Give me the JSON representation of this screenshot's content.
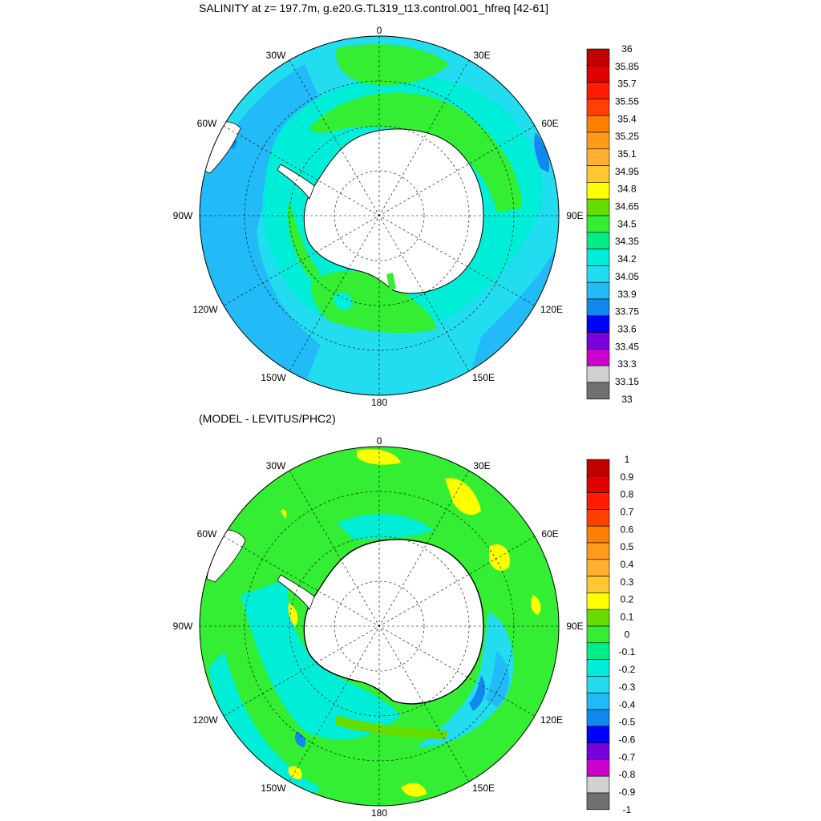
{
  "panels": [
    {
      "title": "SALINITY at z= 197.7m, g.e20.G.TL319_t13.control.001_hfreq [42-61]",
      "colorbar": {
        "labels": [
          "36",
          "35.85",
          "35.7",
          "35.55",
          "35.4",
          "35.25",
          "35.1",
          "34.95",
          "34.8",
          "34.65",
          "34.5",
          "34.35",
          "34.2",
          "34.05",
          "33.9",
          "33.75",
          "33.6",
          "33.45",
          "33.3",
          "33.15",
          "33"
        ],
        "colors": [
          "#c00000",
          "#e00000",
          "#ff1a00",
          "#ff4000",
          "#ff8000",
          "#ff9a1a",
          "#ffb030",
          "#ffc830",
          "#ffff00",
          "#66dd00",
          "#33ee33",
          "#00ee88",
          "#00eed8",
          "#22ddf0",
          "#22bbf8",
          "#1088ee",
          "#0000ff",
          "#7700dd",
          "#cc00cc",
          "#d0d0d0",
          "#707070"
        ]
      }
    },
    {
      "title": "(MODEL - LEVITUS/PHC2)",
      "colorbar": {
        "labels": [
          "1",
          "0.9",
          "0.8",
          "0.7",
          "0.6",
          "0.5",
          "0.4",
          "0.3",
          "0.2",
          "0.1",
          "0",
          "-0.1",
          "-0.2",
          "-0.3",
          "-0.4",
          "-0.5",
          "-0.6",
          "-0.7",
          "-0.8",
          "-0.9",
          "-1"
        ],
        "colors": [
          "#c00000",
          "#e00000",
          "#ff1a00",
          "#ff4000",
          "#ff8000",
          "#ff9a1a",
          "#ffb030",
          "#ffc830",
          "#ffff00",
          "#66dd00",
          "#33ee33",
          "#00ee88",
          "#00eed8",
          "#22ddf0",
          "#22bbf8",
          "#1088ee",
          "#0000ff",
          "#7700dd",
          "#cc00cc",
          "#d0d0d0",
          "#707070"
        ]
      }
    }
  ],
  "longitude_labels": [
    "0",
    "30E",
    "60E",
    "90E",
    "120E",
    "150E",
    "180",
    "150W",
    "120W",
    "90W",
    "60W",
    "30W"
  ]
}
